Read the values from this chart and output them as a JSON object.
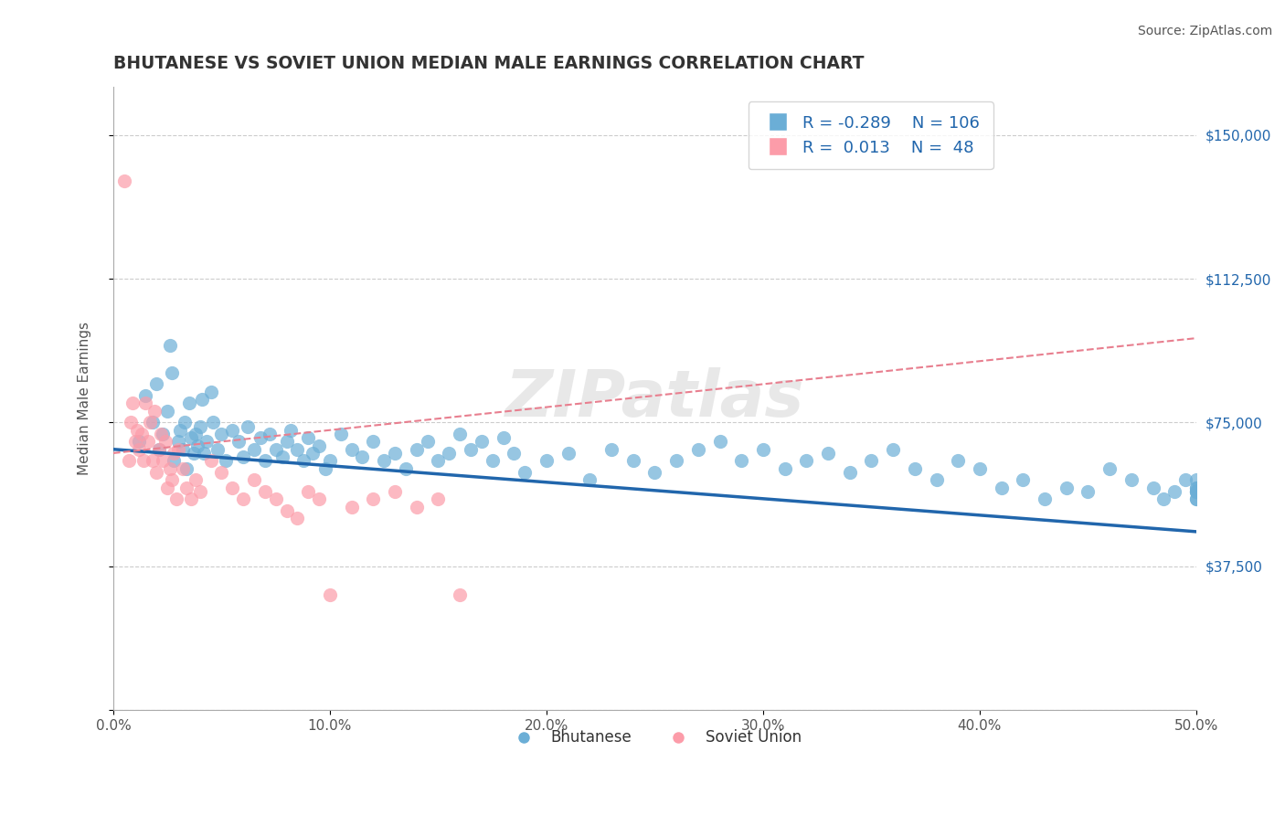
{
  "title": "BHUTANESE VS SOVIET UNION MEDIAN MALE EARNINGS CORRELATION CHART",
  "source_text": "Source: ZipAtlas.com",
  "xlabel": "",
  "ylabel": "Median Male Earnings",
  "xlim": [
    0,
    50
  ],
  "ylim": [
    0,
    162500
  ],
  "yticks": [
    0,
    37500,
    75000,
    112500,
    150000
  ],
  "ytick_labels": [
    "",
    "$37,500",
    "$75,000",
    "$112,500",
    "$150,000"
  ],
  "xticks": [
    0,
    10,
    20,
    30,
    40,
    50
  ],
  "xtick_labels": [
    "0.0%",
    "10.0%",
    "20.0%",
    "30.0%",
    "40.0%",
    "50.0%"
  ],
  "blue_color": "#6baed6",
  "pink_color": "#fc9ca9",
  "blue_line_color": "#2166ac",
  "pink_line_color": "#e87f8f",
  "legend_r1": "R = -0.289",
  "legend_n1": "N = 106",
  "legend_r2": "R =  0.013",
  "legend_n2": "N =  48",
  "watermark": "ZIPatlas",
  "blue_r": -0.289,
  "blue_n": 106,
  "pink_r": 0.013,
  "pink_n": 48,
  "blue_intercept": 68000,
  "blue_slope": -430,
  "pink_intercept": 67000,
  "pink_slope": 600,
  "blue_x": [
    1.2,
    1.5,
    1.8,
    2.0,
    2.1,
    2.3,
    2.5,
    2.6,
    2.7,
    2.8,
    3.0,
    3.1,
    3.2,
    3.3,
    3.4,
    3.5,
    3.6,
    3.7,
    3.8,
    3.9,
    4.0,
    4.1,
    4.2,
    4.3,
    4.5,
    4.6,
    4.8,
    5.0,
    5.2,
    5.5,
    5.8,
    6.0,
    6.2,
    6.5,
    6.8,
    7.0,
    7.2,
    7.5,
    7.8,
    8.0,
    8.2,
    8.5,
    8.8,
    9.0,
    9.2,
    9.5,
    9.8,
    10.0,
    10.5,
    11.0,
    11.5,
    12.0,
    12.5,
    13.0,
    13.5,
    14.0,
    14.5,
    15.0,
    15.5,
    16.0,
    16.5,
    17.0,
    17.5,
    18.0,
    18.5,
    19.0,
    20.0,
    21.0,
    22.0,
    23.0,
    24.0,
    25.0,
    26.0,
    27.0,
    28.0,
    29.0,
    30.0,
    31.0,
    32.0,
    33.0,
    34.0,
    35.0,
    36.0,
    37.0,
    38.0,
    39.0,
    40.0,
    41.0,
    42.0,
    43.0,
    44.0,
    45.0,
    46.0,
    47.0,
    48.0,
    48.5,
    49.0,
    49.5,
    50.0,
    50.0,
    50.0,
    50.0,
    50.0,
    50.0,
    50.0,
    50.0
  ],
  "blue_y": [
    70000,
    82000,
    75000,
    85000,
    68000,
    72000,
    78000,
    95000,
    88000,
    65000,
    70000,
    73000,
    68000,
    75000,
    63000,
    80000,
    71000,
    67000,
    72000,
    69000,
    74000,
    81000,
    67000,
    70000,
    83000,
    75000,
    68000,
    72000,
    65000,
    73000,
    70000,
    66000,
    74000,
    68000,
    71000,
    65000,
    72000,
    68000,
    66000,
    70000,
    73000,
    68000,
    65000,
    71000,
    67000,
    69000,
    63000,
    65000,
    72000,
    68000,
    66000,
    70000,
    65000,
    67000,
    63000,
    68000,
    70000,
    65000,
    67000,
    72000,
    68000,
    70000,
    65000,
    71000,
    67000,
    62000,
    65000,
    67000,
    60000,
    68000,
    65000,
    62000,
    65000,
    68000,
    70000,
    65000,
    68000,
    63000,
    65000,
    67000,
    62000,
    65000,
    68000,
    63000,
    60000,
    65000,
    63000,
    58000,
    60000,
    55000,
    58000,
    57000,
    63000,
    60000,
    58000,
    55000,
    57000,
    60000,
    58000,
    57000,
    55000,
    60000,
    55000,
    58000,
    57000,
    57000
  ],
  "pink_x": [
    0.5,
    0.7,
    0.8,
    0.9,
    1.0,
    1.1,
    1.2,
    1.3,
    1.4,
    1.5,
    1.6,
    1.7,
    1.8,
    1.9,
    2.0,
    2.1,
    2.2,
    2.3,
    2.4,
    2.5,
    2.6,
    2.7,
    2.8,
    2.9,
    3.0,
    3.2,
    3.4,
    3.6,
    3.8,
    4.0,
    4.5,
    5.0,
    5.5,
    6.0,
    6.5,
    7.0,
    7.5,
    8.0,
    8.5,
    9.0,
    9.5,
    10.0,
    11.0,
    12.0,
    13.0,
    14.0,
    15.0,
    16.0
  ],
  "pink_y": [
    138000,
    65000,
    75000,
    80000,
    70000,
    73000,
    68000,
    72000,
    65000,
    80000,
    70000,
    75000,
    65000,
    78000,
    62000,
    68000,
    72000,
    65000,
    70000,
    58000,
    63000,
    60000,
    67000,
    55000,
    68000,
    63000,
    58000,
    55000,
    60000,
    57000,
    65000,
    62000,
    58000,
    55000,
    60000,
    57000,
    55000,
    52000,
    50000,
    57000,
    55000,
    30000,
    53000,
    55000,
    57000,
    53000,
    55000,
    30000
  ]
}
